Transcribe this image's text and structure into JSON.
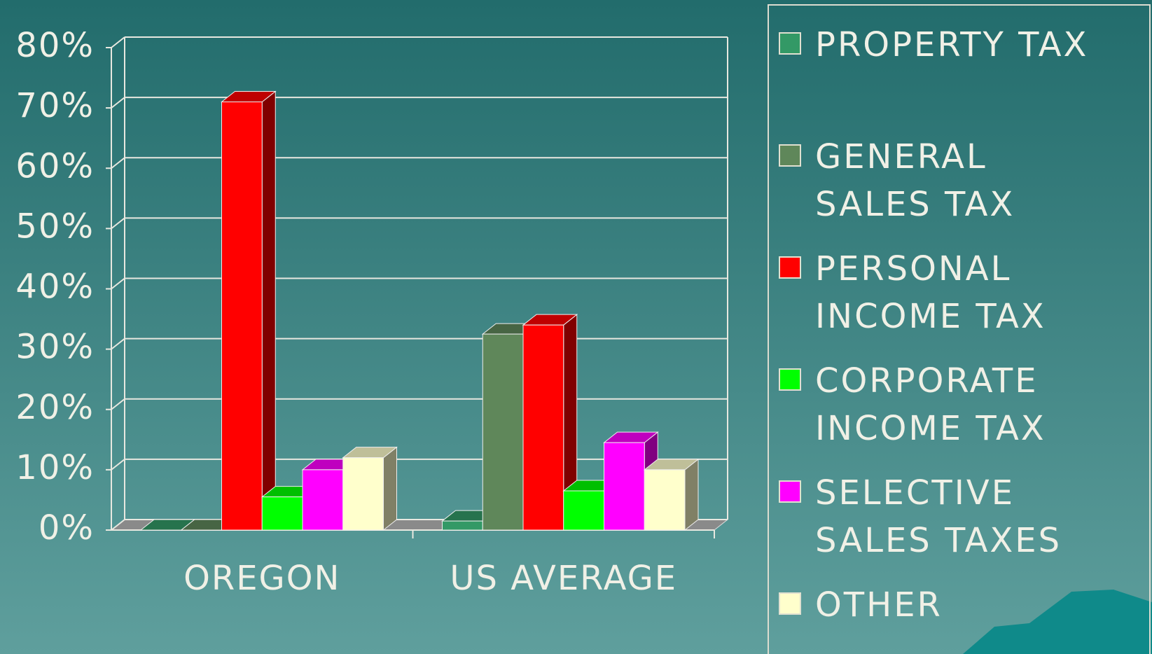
{
  "chart_data": {
    "type": "bar3d",
    "categories": [
      "OREGON",
      "US AVERAGE"
    ],
    "series": [
      {
        "name": "PROPERTY TAX",
        "color": "#339966",
        "values": [
          0,
          1.5
        ]
      },
      {
        "name": "GENERAL SALES TAX",
        "color": "#5f875a",
        "values": [
          0,
          32.5
        ]
      },
      {
        "name": "PERSONAL INCOME TAX",
        "color": "#ff0000",
        "values": [
          71,
          34
        ]
      },
      {
        "name": "CORPORATE INCOME TAX",
        "color": "#00ff00",
        "values": [
          5.5,
          6.5
        ]
      },
      {
        "name": "SELECTIVE SALES TAXES",
        "color": "#ff00ff",
        "values": [
          10,
          14.5
        ]
      },
      {
        "name": "OTHER",
        "color": "#ffffcc",
        "values": [
          12,
          10
        ]
      }
    ],
    "ylim": [
      0,
      80
    ],
    "yticks": [
      {
        "value": 0,
        "label": "0%"
      },
      {
        "value": 10,
        "label": "10%"
      },
      {
        "value": 20,
        "label": "20%"
      },
      {
        "value": 30,
        "label": "30%"
      },
      {
        "value": 40,
        "label": "40%"
      },
      {
        "value": 50,
        "label": "50%"
      },
      {
        "value": 60,
        "label": "60%"
      },
      {
        "value": 70,
        "label": "70%"
      },
      {
        "value": 80,
        "label": "80%"
      }
    ],
    "grid": true
  }
}
